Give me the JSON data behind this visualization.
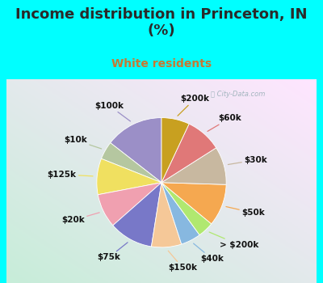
{
  "title": "Income distribution in Princeton, IN\n(%)",
  "subtitle": "White residents",
  "labels": [
    "$100k",
    "$10k",
    "$125k",
    "$20k",
    "$75k",
    "$150k",
    "$40k",
    "> $200k",
    "$50k",
    "$30k",
    "$60k",
    "$200k"
  ],
  "values": [
    14.5,
    4.5,
    9.0,
    8.5,
    11.0,
    7.5,
    5.0,
    4.0,
    10.5,
    9.5,
    9.0,
    7.0
  ],
  "colors": [
    "#9b8fc7",
    "#b5c7a0",
    "#f0e060",
    "#f0a0b0",
    "#7878c8",
    "#f5c898",
    "#87b8e0",
    "#b0e870",
    "#f5a850",
    "#c8b8a0",
    "#e07878",
    "#c8a020"
  ],
  "background_color": "#00ffff",
  "title_color": "#2a2a2a",
  "subtitle_color": "#c87832",
  "startangle": 90,
  "label_fontsize": 7.5,
  "title_fontsize": 13,
  "label_dist": 1.32,
  "watermark": "ⓘ City-Data.com"
}
